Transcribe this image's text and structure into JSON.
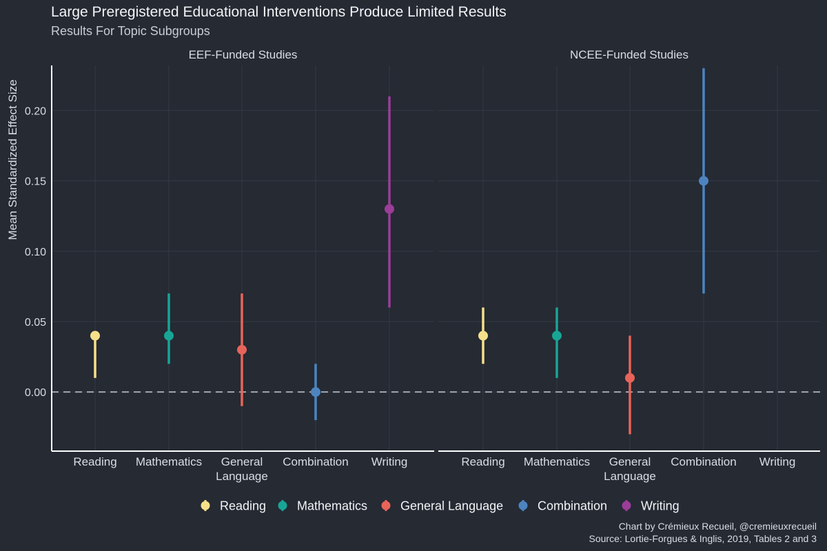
{
  "chart_data": {
    "type": "scatter",
    "title": "Large Preregistered Educational Interventions Produce Limited Results",
    "subtitle": "Results For Topic Subgroups",
    "ylabel": "Mean Standardized Effect Size",
    "xlabel": "",
    "ylim": [
      -0.042,
      0.232
    ],
    "yticks": [
      0.0,
      0.05,
      0.1,
      0.15,
      0.2
    ],
    "ytick_labels": [
      "0.00",
      "0.05",
      "0.10",
      "0.15",
      "0.20"
    ],
    "reference_line": 0,
    "grid": true,
    "legend_position": "bottom",
    "categories": [
      "Reading",
      "Mathematics",
      "General Language",
      "Combination",
      "Writing"
    ],
    "category_labels": [
      [
        "Reading"
      ],
      [
        "Mathematics"
      ],
      [
        "General",
        "Language"
      ],
      [
        "Combination"
      ],
      [
        "Writing"
      ]
    ],
    "colors": {
      "Reading": "#f7e08a",
      "Mathematics": "#18a596",
      "General Language": "#e8645a",
      "Combination": "#4d84c0",
      "Writing": "#9b3d99"
    },
    "legend": [
      "Reading",
      "Mathematics",
      "General Language",
      "Combination",
      "Writing"
    ],
    "panels": [
      {
        "title": "EEF-Funded Studies",
        "points": [
          {
            "category": "Reading",
            "mean": 0.04,
            "lower": 0.01,
            "upper": 0.04
          },
          {
            "category": "Mathematics",
            "mean": 0.04,
            "lower": 0.02,
            "upper": 0.07
          },
          {
            "category": "General Language",
            "mean": 0.03,
            "lower": -0.01,
            "upper": 0.07
          },
          {
            "category": "Combination",
            "mean": 0.0,
            "lower": -0.02,
            "upper": 0.02
          },
          {
            "category": "Writing",
            "mean": 0.13,
            "lower": 0.06,
            "upper": 0.21
          }
        ]
      },
      {
        "title": "NCEE-Funded Studies",
        "points": [
          {
            "category": "Reading",
            "mean": 0.04,
            "lower": 0.02,
            "upper": 0.06
          },
          {
            "category": "Mathematics",
            "mean": 0.04,
            "lower": 0.01,
            "upper": 0.06
          },
          {
            "category": "General Language",
            "mean": 0.01,
            "lower": -0.03,
            "upper": 0.04
          },
          {
            "category": "Combination",
            "mean": 0.15,
            "lower": 0.07,
            "upper": 0.23
          }
        ]
      }
    ],
    "caption": [
      "Chart by Crémieux Recueil, @cremieuxrecueil",
      "Source: Lortie-Forgues & Inglis, 2019, Tables 2 and 3"
    ]
  }
}
